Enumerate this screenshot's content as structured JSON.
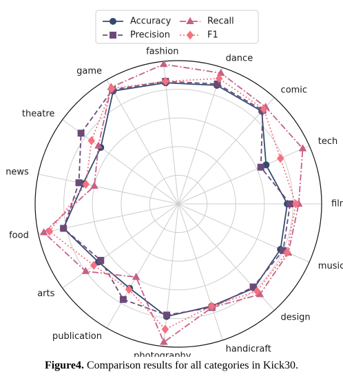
{
  "chart_data": {
    "type": "radar",
    "categories": [
      "films",
      "tech",
      "comic",
      "dance",
      "fashion",
      "game",
      "theatre",
      "news",
      "food",
      "arts",
      "publication",
      "photography",
      "handicraft",
      "design",
      "music"
    ],
    "rlim": [
      0,
      1
    ],
    "grid": true,
    "legend_position": "top-center",
    "series": [
      {
        "name": "Accuracy",
        "color": "#34496e",
        "line": "solid",
        "marker": "circle",
        "values": [
          0.76,
          0.67,
          0.87,
          0.87,
          0.85,
          0.91,
          0.67,
          0.68,
          0.82,
          0.69,
          0.68,
          0.79,
          0.75,
          0.79,
          0.78
        ]
      },
      {
        "name": "Precision",
        "color": "#6b4a78",
        "line": "dashed",
        "marker": "square",
        "values": [
          0.78,
          0.63,
          0.88,
          0.88,
          0.86,
          0.92,
          0.84,
          0.71,
          0.82,
          0.67,
          0.77,
          0.78,
          0.76,
          0.78,
          0.8
        ]
      },
      {
        "name": "Recall",
        "color": "#c85f86",
        "line": "dashdot",
        "marker": "triangle",
        "values": [
          0.84,
          0.95,
          0.91,
          0.96,
          0.98,
          0.94,
          0.69,
          0.6,
          0.96,
          0.8,
          0.59,
          0.97,
          0.76,
          0.85,
          0.84
        ]
      },
      {
        "name": "F1",
        "color": "#f4717f",
        "line": "dotted",
        "marker": "diamond",
        "values": [
          0.82,
          0.78,
          0.89,
          0.92,
          0.86,
          0.93,
          0.75,
          0.66,
          0.92,
          0.73,
          0.69,
          0.88,
          0.75,
          0.82,
          0.83
        ]
      }
    ]
  },
  "caption": {
    "label": "Figure4.",
    "text": " Comparison results for all categories in Kick30."
  }
}
